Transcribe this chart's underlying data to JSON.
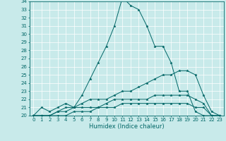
{
  "title": "",
  "xlabel": "Humidex (Indice chaleur)",
  "ylabel": "",
  "bg_color": "#c8eaea",
  "grid_color": "#ffffff",
  "line_color": "#006666",
  "xlim": [
    -0.5,
    23.5
  ],
  "ylim": [
    20,
    34
  ],
  "xticks": [
    0,
    1,
    2,
    3,
    4,
    5,
    6,
    7,
    8,
    9,
    10,
    11,
    12,
    13,
    14,
    15,
    16,
    17,
    18,
    19,
    20,
    21,
    22,
    23
  ],
  "yticks": [
    20,
    21,
    22,
    23,
    24,
    25,
    26,
    27,
    28,
    29,
    30,
    31,
    32,
    33,
    34
  ],
  "series": [
    [
      20.0,
      21.0,
      20.5,
      21.0,
      21.5,
      21.0,
      22.5,
      24.5,
      26.5,
      28.5,
      31.0,
      34.5,
      33.5,
      33.0,
      31.0,
      28.5,
      28.5,
      26.5,
      23.0,
      23.0,
      20.5,
      20.0,
      20.0,
      20.0
    ],
    [
      20.0,
      20.0,
      20.0,
      20.5,
      21.0,
      21.0,
      21.5,
      22.0,
      22.0,
      22.0,
      22.5,
      23.0,
      23.0,
      23.5,
      24.0,
      24.5,
      25.0,
      25.0,
      25.5,
      25.5,
      25.0,
      22.5,
      20.5,
      20.0
    ],
    [
      20.0,
      20.0,
      20.0,
      20.5,
      20.5,
      21.0,
      21.0,
      21.0,
      21.0,
      21.5,
      22.0,
      22.0,
      22.0,
      22.0,
      22.0,
      22.5,
      22.5,
      22.5,
      22.5,
      22.5,
      22.0,
      21.5,
      20.0,
      20.0
    ],
    [
      20.0,
      20.0,
      20.0,
      20.0,
      20.0,
      20.5,
      20.5,
      20.5,
      21.0,
      21.0,
      21.0,
      21.5,
      21.5,
      21.5,
      21.5,
      21.5,
      21.5,
      21.5,
      21.5,
      21.5,
      21.0,
      21.0,
      20.0,
      20.0
    ]
  ],
  "tick_fontsize": 5.0,
  "xlabel_fontsize": 6.0,
  "linewidth": 0.7,
  "markersize": 2.5
}
